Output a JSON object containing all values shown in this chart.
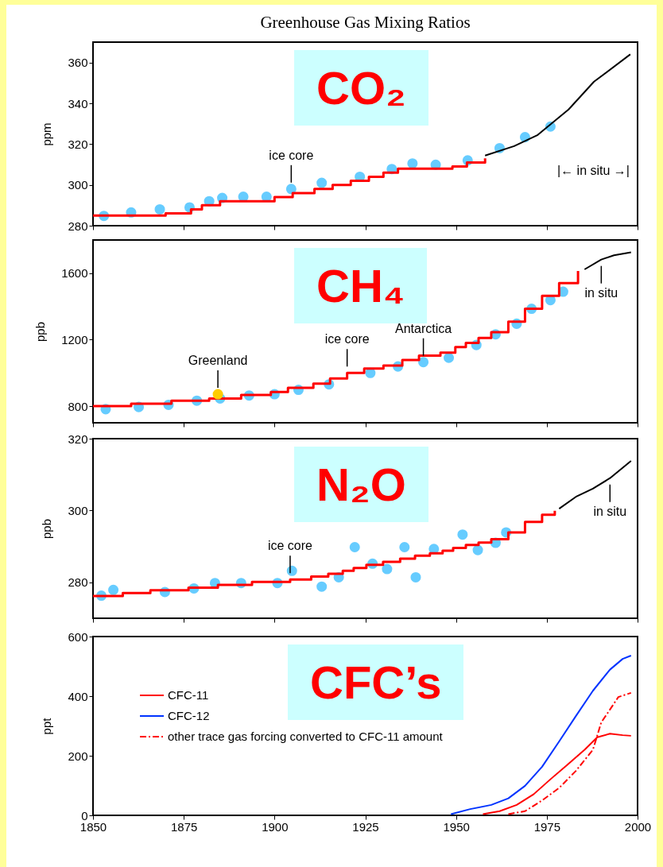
{
  "chart_data": [
    {
      "type": "step",
      "title": "Greenhouse Gas Mixing Ratios",
      "subtitle": "CO₂",
      "ylabel": "ppm",
      "xlim": [
        1850,
        2000
      ],
      "xticks": [
        1850,
        1875,
        1900,
        1925,
        1950,
        1975,
        2000
      ],
      "ylim": [
        280,
        370
      ],
      "yticks": [
        280,
        300,
        320,
        340,
        360
      ],
      "tick_labels": "y",
      "series": [
        {
          "type": "scatter",
          "color": "#66ccff",
          "x": [
            1853,
            1860.5,
            1868.4,
            1876.6,
            1882,
            1885.6,
            1891.4,
            1897.8,
            1904.6,
            1913,
            1923.5,
            1932.3,
            1938,
            1944.4,
            1953.2,
            1962,
            1969,
            1976
          ],
          "values": [
            284.8,
            286.5,
            288,
            289,
            292,
            293.6,
            294.2,
            294.2,
            298,
            301,
            304,
            307.8,
            310.5,
            309.9,
            312,
            318,
            323.4,
            328.6
          ]
        },
        {
          "color": "#ff0000",
          "x": [
            1850,
            1870,
            1877,
            1880,
            1885,
            1900,
            1905,
            1911,
            1916,
            1921,
            1926,
            1930,
            1934,
            1949,
            1953,
            1958
          ],
          "values": [
            285,
            286,
            288,
            290,
            292,
            294,
            296,
            298,
            300,
            302,
            304,
            306,
            308,
            309,
            311,
            313
          ]
        },
        {
          "type": "line",
          "color": "#000000",
          "x": [
            1958,
            1966,
            1972.5,
            1981,
            1988,
            1998
          ],
          "values": [
            314.4,
            319,
            324.5,
            337,
            350.6,
            364
          ]
        }
      ],
      "annotations": [
        {
          "text": "ice core",
          "x": 1904.6,
          "y": 298
        },
        "|← in situ →|"
      ]
    },
    {
      "type": "step",
      "subtitle": "CH₄",
      "ylabel": "ppb",
      "xlim": [
        1850,
        2000
      ],
      "xticks": [
        1850,
        1875,
        1900,
        1925,
        1950,
        1975,
        2000
      ],
      "ylim": [
        700,
        1800
      ],
      "yticks": [
        800,
        1200,
        1600
      ],
      "tick_labels": "y",
      "series": [
        {
          "type": "scatter",
          "color": "#66ccff",
          "x": [
            1853.5,
            1862.6,
            1870.8,
            1878.6,
            1885,
            1893,
            1900,
            1906.6,
            1915,
            1926.4,
            1934,
            1941,
            1948,
            1955.6,
            1960.9,
            1966.7,
            1970.8,
            1976,
            1979.5
          ],
          "values": [
            782,
            795,
            808,
            833,
            846,
            864,
            872,
            898,
            931,
            1000,
            1039,
            1065,
            1091,
            1168,
            1232,
            1296,
            1386,
            1438,
            1489
          ]
        },
        {
          "color": "#ff0000",
          "x": [
            1850,
            1860.5,
            1871.6,
            1882,
            1890.8,
            1899,
            1903.7,
            1910.7,
            1915.3,
            1920,
            1924.7,
            1930,
            1935.2,
            1939.8,
            1945.7,
            1949.8,
            1952.7,
            1956.2,
            1959.7,
            1964.4,
            1969,
            1973.7,
            1978.4,
            1983.6
          ],
          "values": [
            800,
            815,
            833,
            846,
            867,
            885,
            910,
            936,
            967,
            1000,
            1026,
            1044,
            1078,
            1104,
            1122,
            1155,
            1181,
            1210,
            1245,
            1309,
            1386,
            1464,
            1541,
            1613
          ]
        },
        {
          "type": "line",
          "color": "#000000",
          "x": [
            1985.4,
            1990,
            1993.5,
            1998.2
          ],
          "values": [
            1623,
            1682,
            1708,
            1726
          ]
        },
        {
          "type": "scatter",
          "color": "#ffcc00",
          "x": [
            1884.4
          ],
          "values": [
            872
          ]
        }
      ],
      "annotations": [
        {
          "text": "ice core",
          "x": 1920,
          "y": 1000
        },
        {
          "text": "Greenland",
          "x": 1884.4,
          "y": 872
        },
        {
          "text": "Antarctica",
          "x": 1941,
          "y": 1065
        },
        {
          "text": "in situ",
          "x": 1990,
          "y": 1682
        }
      ]
    },
    {
      "type": "step",
      "subtitle": "N₂O",
      "ylabel": "ppb",
      "xlim": [
        1850,
        2000
      ],
      "xticks": [
        1850,
        1875,
        1900,
        1925,
        1950,
        1975,
        2000
      ],
      "ylim": [
        270,
        320
      ],
      "yticks": [
        280,
        300,
        320
      ],
      "tick_labels": "y",
      "series": [
        {
          "type": "scatter",
          "color": "#66ccff",
          "x": [
            1852.3,
            1855.6,
            1869.8,
            1877.8,
            1883.6,
            1890.8,
            1900.8,
            1904.8,
            1913,
            1917.7,
            1922.1,
            1927,
            1931,
            1935.8,
            1938.9,
            1943.9,
            1951.8,
            1956,
            1960.9,
            1963.8
          ],
          "values": [
            276.3,
            277.9,
            277.3,
            278.3,
            279.8,
            279.8,
            279.8,
            283.2,
            278.8,
            281.4,
            289.8,
            285.2,
            283.7,
            289.8,
            281.4,
            289.3,
            293.3,
            289,
            291,
            293.9
          ]
        },
        {
          "color": "#ff0000",
          "x": [
            1850,
            1858.2,
            1865.8,
            1876.3,
            1884.4,
            1893.8,
            1904.3,
            1910.1,
            1914.8,
            1918.8,
            1921.8,
            1925.3,
            1929.9,
            1934.6,
            1938.7,
            1942.8,
            1946.3,
            1949.2,
            1952.7,
            1956.2,
            1959.7,
            1964.4,
            1969,
            1973.7,
            1977.2
          ],
          "values": [
            276.2,
            277,
            277.8,
            278.5,
            279.3,
            280.1,
            280.8,
            281.6,
            282.4,
            283.2,
            284,
            284.9,
            285.7,
            286.6,
            287.4,
            288.1,
            288.8,
            289.6,
            290.4,
            291.1,
            292,
            293.9,
            296.8,
            298.8,
            299.9
          ]
        },
        {
          "type": "line",
          "color": "#000000",
          "x": [
            1978.4,
            1983,
            1987.7,
            1992.4,
            1998.2
          ],
          "values": [
            300.5,
            303.8,
            306.1,
            309,
            313.8
          ]
        }
      ],
      "annotations": [
        {
          "text": "ice core",
          "x": 1904.3,
          "y": 280.8
        },
        {
          "text": "in situ",
          "x": 1992.4,
          "y": 309
        }
      ]
    },
    {
      "type": "line",
      "subtitle": "CFC’s",
      "ylabel": "ppt",
      "xlim": [
        1850,
        2000
      ],
      "xticks": [
        1850,
        1875,
        1900,
        1925,
        1950,
        1975,
        2000
      ],
      "ylim": [
        0,
        600
      ],
      "yticks": [
        0,
        200,
        400,
        600
      ],
      "legend": "top left",
      "series": [
        {
          "name": "CFC-11",
          "color": "#ff0000",
          "x": [
            1957.4,
            1962,
            1966.7,
            1971.4,
            1976,
            1980.7,
            1985.4,
            1988.9,
            1992.4,
            1995.9,
            1998.2
          ],
          "values": [
            4,
            14,
            35,
            71,
            121,
            170,
            220,
            262,
            274,
            269,
            267
          ]
        },
        {
          "name": "CFC-12",
          "color": "#0033ff",
          "x": [
            1948.6,
            1953.9,
            1959.7,
            1964.4,
            1969,
            1973.7,
            1978.4,
            1983,
            1987.7,
            1992.4,
            1995.9,
            1998.2
          ],
          "values": [
            4,
            21,
            35,
            57,
            99,
            163,
            248,
            333,
            418,
            489,
            525,
            536
          ]
        },
        {
          "name": "other trace gas forcing converted to CFC-11 amount",
          "color": "#ff0000",
          "line_style": "dashed",
          "x": [
            1964.4,
            1969,
            1973.7,
            1978.4,
            1983,
            1987.7,
            1990,
            1992.4,
            1994.7,
            1998.2
          ],
          "values": [
            4,
            14,
            50,
            92,
            149,
            220,
            312,
            355,
            397,
            411
          ]
        }
      ]
    }
  ]
}
